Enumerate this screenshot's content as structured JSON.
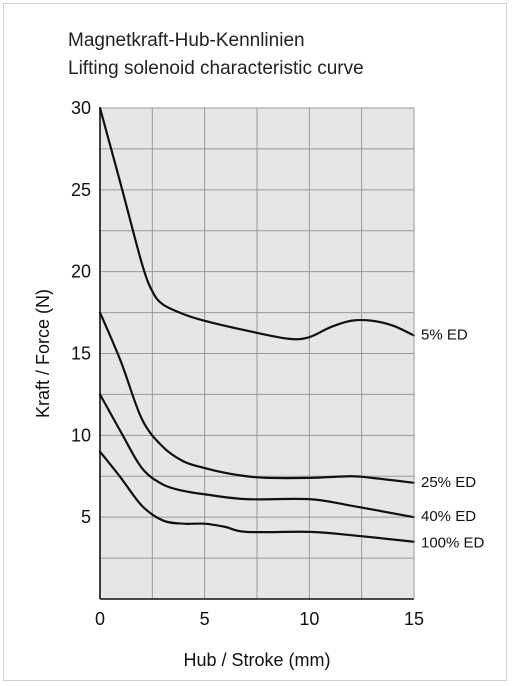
{
  "chart_data": {
    "type": "line",
    "title": "Magnetkraft-Hub-Kennlinien",
    "subtitle": "Lifting solenoid characteristic curve",
    "xlabel": "Hub / Stroke (mm)",
    "ylabel": "Kraft / Force (N)",
    "xlim": [
      0,
      15
    ],
    "ylim": [
      0,
      30
    ],
    "x_ticks": [
      0,
      5,
      10,
      15
    ],
    "y_ticks": [
      5,
      10,
      15,
      20,
      25,
      30
    ],
    "x_tick_labels": [
      "0",
      "5",
      "10",
      "15"
    ],
    "y_tick_labels": [
      "5",
      "10",
      "15",
      "20",
      "25",
      "30"
    ],
    "grid": true,
    "colors": {
      "plot_background": "#e6e6e6",
      "grid": "#9a9a9a",
      "line": "#111111"
    },
    "series": [
      {
        "name": "5% ED",
        "x": [
          0,
          1,
          2,
          2.5,
          3,
          4,
          5,
          7,
          9,
          10,
          11,
          12,
          13,
          14,
          15
        ],
        "values": [
          30,
          25.3,
          20.5,
          18.8,
          18,
          17.4,
          17,
          16.4,
          15.9,
          16.0,
          16.6,
          17.0,
          17.0,
          16.7,
          16.1
        ]
      },
      {
        "name": "25% ED",
        "x": [
          0,
          1,
          2,
          3,
          4,
          5,
          6,
          7,
          8,
          10,
          12,
          13,
          15
        ],
        "values": [
          17.5,
          14.5,
          11.0,
          9.3,
          8.4,
          8.0,
          7.7,
          7.5,
          7.4,
          7.4,
          7.5,
          7.4,
          7.1
        ]
      },
      {
        "name": "40% ED",
        "x": [
          0,
          1,
          2,
          3,
          4,
          5,
          7,
          10,
          12,
          15
        ],
        "values": [
          12.5,
          10.2,
          8.0,
          7.0,
          6.6,
          6.4,
          6.1,
          6.1,
          5.7,
          5.0
        ]
      },
      {
        "name": "100% ED",
        "x": [
          0,
          1,
          2,
          3,
          4,
          5,
          6,
          7,
          10,
          12,
          15
        ],
        "values": [
          9.0,
          7.4,
          5.7,
          4.8,
          4.6,
          4.6,
          4.4,
          4.1,
          4.1,
          3.9,
          3.5
        ]
      }
    ]
  }
}
